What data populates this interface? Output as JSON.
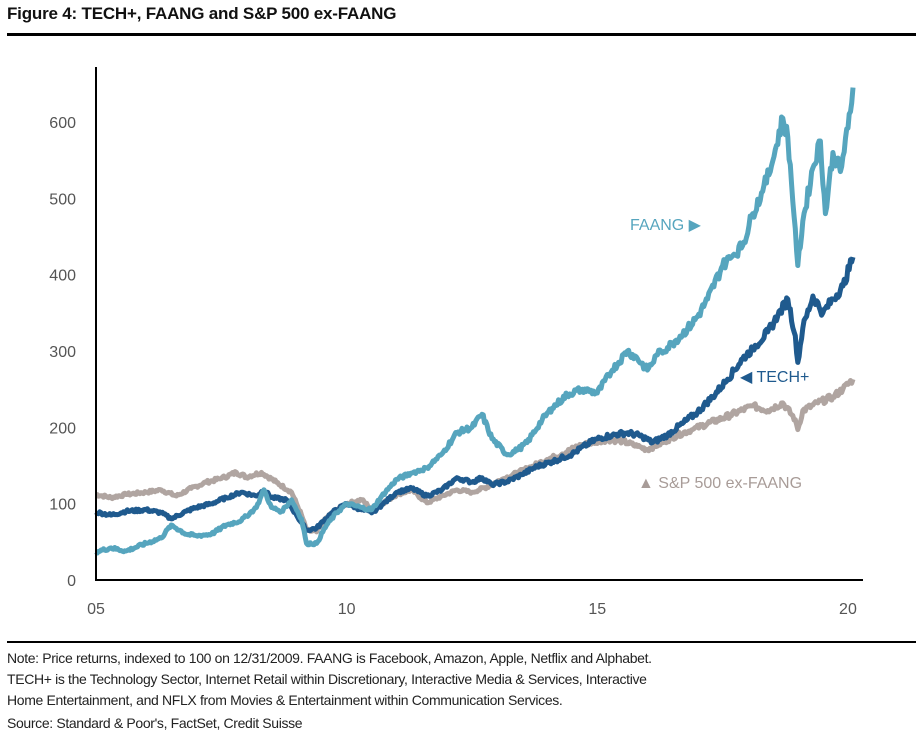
{
  "figure": {
    "title": "Figure 4: TECH+, FAANG and S&P 500 ex-FAANG",
    "note_lines": [
      "Note: Price returns, indexed to 100 on 12/31/2009. FAANG is Facebook, Amazon, Apple, Netflix and Alphabet.",
      "TECH+ is the Technology Sector, Internet Retail within Discretionary, Interactive Media & Services, Interactive",
      "Home Entertainment, and NFLX from Movies & Entertainment within Communication Services."
    ],
    "source": "Source: Standard & Poor's, FactSet, Credit Suisse"
  },
  "chart_data": {
    "type": "line",
    "title": "Figure 4: TECH+, FAANG and S&P 500 ex-FAANG",
    "xlabel": "",
    "ylabel": "",
    "xlim": [
      2005,
      2020.3
    ],
    "ylim": [
      0,
      672
    ],
    "x_ticks": [
      2005,
      2010,
      2015,
      2020
    ],
    "x_tick_labels": [
      "05",
      "10",
      "15",
      "20"
    ],
    "y_ticks": [
      0,
      100,
      200,
      300,
      400,
      500,
      600
    ],
    "y_tick_labels": [
      "0",
      "100",
      "200",
      "300",
      "400",
      "500",
      "600"
    ],
    "grid": false,
    "legend": "inline-labels",
    "series": [
      {
        "name": "S&P 500 ex-FAANG",
        "label": "▲ S&P 500 ex-FAANG",
        "color": "#b0a5a1",
        "x": [
          2005.0,
          2005.3,
          2005.6,
          2006.0,
          2006.3,
          2006.6,
          2006.9,
          2007.2,
          2007.5,
          2007.8,
          2008.0,
          2008.3,
          2008.6,
          2008.9,
          2009.1,
          2009.2,
          2009.4,
          2009.6,
          2009.8,
          2010.0,
          2010.3,
          2010.5,
          2010.7,
          2011.0,
          2011.3,
          2011.6,
          2011.9,
          2012.2,
          2012.5,
          2012.8,
          2013.1,
          2013.4,
          2013.7,
          2014.0,
          2014.3,
          2014.6,
          2014.9,
          2015.2,
          2015.5,
          2015.8,
          2016.0,
          2016.3,
          2016.6,
          2016.9,
          2017.2,
          2017.5,
          2017.8,
          2018.1,
          2018.4,
          2018.7,
          2018.95,
          2019.0,
          2019.1,
          2019.4,
          2019.7,
          2019.9,
          2020.1
        ],
        "values": [
          112,
          108,
          112,
          115,
          118,
          110,
          120,
          128,
          133,
          141,
          135,
          141,
          128,
          115,
          85,
          65,
          63,
          82,
          92,
          100,
          105,
          93,
          100,
          112,
          118,
          101,
          110,
          118,
          115,
          122,
          132,
          140,
          149,
          158,
          165,
          175,
          180,
          184,
          182,
          175,
          171,
          180,
          190,
          197,
          205,
          212,
          220,
          228,
          222,
          232,
          210,
          197,
          222,
          232,
          240,
          250,
          263
        ]
      },
      {
        "name": "TECH+",
        "label": "◀ TECH+",
        "color": "#1f5a8e",
        "x": [
          2005.0,
          2005.3,
          2005.6,
          2006.0,
          2006.3,
          2006.5,
          2006.8,
          2007.0,
          2007.3,
          2007.6,
          2007.9,
          2008.2,
          2008.35,
          2008.5,
          2008.8,
          2009.0,
          2009.2,
          2009.4,
          2009.7,
          2010.0,
          2010.3,
          2010.5,
          2010.7,
          2011.0,
          2011.3,
          2011.6,
          2011.9,
          2012.2,
          2012.5,
          2012.7,
          2012.9,
          2013.2,
          2013.5,
          2013.8,
          2014.1,
          2014.5,
          2014.8,
          2015.0,
          2015.3,
          2015.6,
          2015.9,
          2016.1,
          2016.4,
          2016.7,
          2017.0,
          2017.3,
          2017.6,
          2017.9,
          2018.1,
          2018.4,
          2018.6,
          2018.8,
          2018.95,
          2019.0,
          2019.1,
          2019.3,
          2019.5,
          2019.7,
          2019.9,
          2020.1
        ],
        "values": [
          89,
          85,
          90,
          92,
          88,
          80,
          90,
          95,
          100,
          108,
          115,
          110,
          118,
          108,
          105,
          85,
          65,
          68,
          88,
          100,
          92,
          88,
          98,
          115,
          120,
          110,
          118,
          134,
          128,
          134,
          125,
          129,
          138,
          149,
          155,
          165,
          178,
          185,
          190,
          193,
          188,
          180,
          190,
          205,
          220,
          240,
          263,
          290,
          303,
          325,
          346,
          368,
          320,
          285,
          330,
          372,
          350,
          368,
          385,
          423
        ]
      },
      {
        "name": "FAANG",
        "label": "FAANG ▶",
        "color": "#56a5be",
        "x": [
          2005.0,
          2005.3,
          2005.6,
          2006.0,
          2006.3,
          2006.5,
          2006.8,
          2007.0,
          2007.3,
          2007.6,
          2007.9,
          2008.2,
          2008.35,
          2008.5,
          2008.7,
          2008.9,
          2009.1,
          2009.2,
          2009.4,
          2009.6,
          2009.8,
          2010.0,
          2010.3,
          2010.5,
          2010.7,
          2011.0,
          2011.3,
          2011.6,
          2011.9,
          2012.2,
          2012.5,
          2012.7,
          2012.9,
          2013.2,
          2013.4,
          2013.6,
          2013.9,
          2014.1,
          2014.4,
          2014.7,
          2015.0,
          2015.3,
          2015.6,
          2015.8,
          2016.0,
          2016.2,
          2016.5,
          2016.8,
          2017.0,
          2017.2,
          2017.5,
          2017.7,
          2017.9,
          2018.1,
          2018.3,
          2018.5,
          2018.7,
          2018.8,
          2018.95,
          2019.0,
          2019.1,
          2019.3,
          2019.45,
          2019.55,
          2019.7,
          2019.85,
          2020.0,
          2020.1
        ],
        "values": [
          37,
          42,
          38,
          48,
          55,
          72,
          60,
          58,
          60,
          72,
          78,
          95,
          118,
          95,
          90,
          105,
          80,
          48,
          48,
          72,
          88,
          100,
          95,
          92,
          110,
          132,
          140,
          147,
          165,
          193,
          200,
          217,
          185,
          164,
          170,
          180,
          210,
          225,
          243,
          250,
          245,
          275,
          300,
          290,
          275,
          295,
          310,
          329,
          345,
          368,
          412,
          425,
          438,
          480,
          509,
          549,
          605,
          580,
          460,
          412,
          470,
          540,
          575,
          480,
          560,
          535,
          592,
          645
        ]
      }
    ]
  }
}
